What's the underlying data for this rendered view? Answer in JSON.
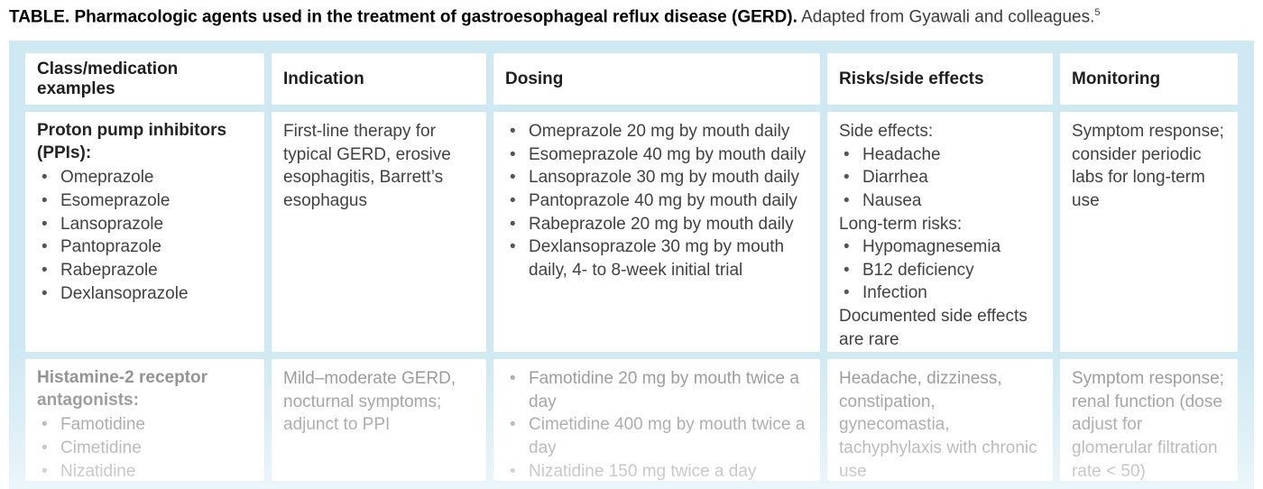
{
  "ui": {
    "bullet_glyph": "•"
  },
  "colors": {
    "table_background": "#cfe9f2",
    "cell_background": "#ffffff",
    "header_text": "#1e1e1e",
    "body_text": "#414141",
    "faded_row_text": "#909090"
  },
  "title": {
    "label": "TABLE.",
    "bold_text": "Pharmacologic agents used in the treatment of gastroesophageal reflux disease (GERD).",
    "regular_text": "Adapted from Gyawali and colleagues.",
    "footnote_ref": "5"
  },
  "table": {
    "headers": [
      "Class/medication examples",
      "Indication",
      "Dosing",
      "Risks/side effects",
      "Monitoring"
    ],
    "row_ppi": {
      "class_heading": "Proton pump inhibitors (PPIs):",
      "meds": [
        "Omeprazole",
        "Esomeprazole",
        "Lansoprazole",
        "Pantoprazole",
        "Rabeprazole",
        "Dexlansoprazole"
      ],
      "indication": "First-line therapy for typical GERD, erosive esophagitis, Barrett’s esophagus",
      "dosing": [
        "Omeprazole 20 mg by mouth daily",
        "Esomeprazole 40 mg by mouth daily",
        "Lansoprazole 30 mg by mouth daily",
        "Pantoprazole 40 mg by mouth daily",
        "Rabeprazole 20 mg by mouth daily",
        "Dexlansoprazole 30 mg by mouth daily, 4- to 8-week initial trial"
      ],
      "risks_heading1": "Side effects:",
      "risks_items1": [
        "Headache",
        "Diarrhea",
        "Nausea"
      ],
      "risks_heading2": "Long-term risks:",
      "risks_items2": [
        "Hypomagnesemia",
        "B12 deficiency",
        "Infection"
      ],
      "risks_note": "Documented side effects are rare",
      "monitoring": "Symptom response; consider periodic labs for long-term use"
    },
    "row_h2ra": {
      "class_heading": "Histamine-2 receptor antagonists:",
      "meds": [
        "Famotidine",
        "Cimetidine",
        "Nizatidine"
      ],
      "indication": "Mild–moderate GERD, nocturnal symptoms; adjunct to PPI",
      "dosing": [
        "Famotidine 20 mg by mouth twice a day",
        "Cimetidine 400 mg by mouth twice a day",
        "Nizatidine 150 mg twice a day"
      ],
      "risks": "Headache, dizziness, constipation, gynecomastia, tachyphylaxis with chronic use",
      "monitoring": "Symptom response; renal function (dose adjust for glomerular filtration rate < 50)"
    }
  }
}
